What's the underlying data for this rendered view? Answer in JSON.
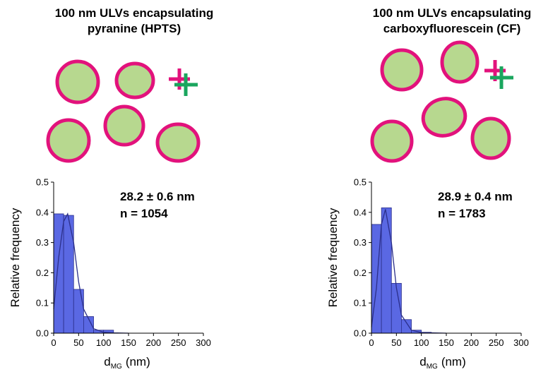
{
  "chart_data": [
    {
      "type": "histogram",
      "title": [
        "100 nm ULVs encapsulating",
        "pyranine (HPTS)"
      ],
      "annotations": [
        "28.2 ± 0.6 nm",
        "n = 1054"
      ],
      "xlabel": {
        "main": "d",
        "sub": "MG",
        "unit": "(nm)"
      },
      "ylabel": "Relative frequency",
      "bins": [
        0,
        20,
        40,
        60,
        80,
        100,
        120
      ],
      "values": [
        0.395,
        0.39,
        0.145,
        0.055,
        0.01,
        0.01
      ],
      "color": "#5a68e3",
      "fit": {
        "x": [
          0,
          10,
          20,
          28,
          40,
          50,
          60,
          80,
          100,
          120,
          150
        ],
        "values": [
          0.08,
          0.25,
          0.37,
          0.395,
          0.3,
          0.17,
          0.08,
          0.015,
          0.003,
          0.001,
          0
        ]
      },
      "xlim": [
        0,
        300
      ],
      "xticks": [
        0,
        50,
        100,
        150,
        200,
        250,
        300
      ],
      "ylim": [
        0,
        0.5
      ],
      "yticks": [
        {
          "value": 0,
          "label": "0.0"
        },
        0.1,
        0.2,
        0.3,
        0.4,
        0.5
      ]
    },
    {
      "type": "histogram",
      "title": [
        "100 nm ULVs encapsulating",
        "carboxyfluorescein (CF)"
      ],
      "annotations": [
        "28.9 ± 0.4 nm",
        "n = 1783"
      ],
      "xlabel": {
        "main": "d",
        "sub": "MG",
        "unit": "(nm)"
      },
      "ylabel": "Relative frequency",
      "bins": [
        0,
        20,
        40,
        60,
        80,
        100,
        120
      ],
      "values": [
        0.36,
        0.415,
        0.165,
        0.045,
        0.01,
        0.003
      ],
      "color": "#5a68e3",
      "fit": {
        "x": [
          0,
          10,
          20,
          28,
          40,
          50,
          60,
          80,
          100,
          150
        ],
        "values": [
          0.02,
          0.15,
          0.36,
          0.41,
          0.3,
          0.15,
          0.06,
          0.01,
          0.002,
          0
        ]
      },
      "xlim": [
        0,
        300
      ],
      "xticks": [
        0,
        50,
        100,
        150,
        200,
        250,
        300
      ],
      "ylim": [
        0,
        0.5
      ],
      "yticks": [
        {
          "value": 0,
          "label": "0.0"
        },
        0.1,
        0.2,
        0.3,
        0.4,
        0.5
      ]
    }
  ]
}
